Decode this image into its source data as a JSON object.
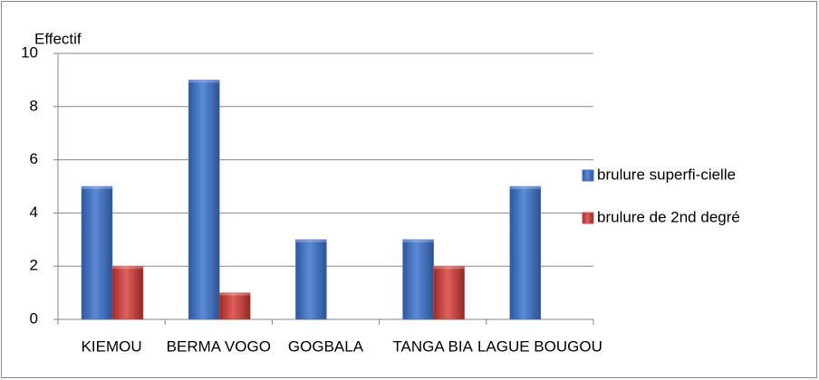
{
  "chart_data": {
    "type": "bar",
    "y_label": "Effectif",
    "categories": [
      "KIEMOU",
      "BERMA VOGO",
      "GOGBALA",
      "TANGA BIA",
      "LAGUE BOUGOU"
    ],
    "series": [
      {
        "name": "brulure superfi-cielle",
        "color": "#4472c4",
        "values": [
          5,
          9,
          3,
          3,
          5
        ]
      },
      {
        "name": "brulure de 2nd degré",
        "color": "#c0504d",
        "values": [
          2,
          1,
          0,
          2,
          0
        ]
      }
    ],
    "ylim": [
      0,
      10
    ],
    "yticks": [
      0,
      2,
      4,
      6,
      8,
      10
    ],
    "grid": true,
    "legend": "right"
  }
}
